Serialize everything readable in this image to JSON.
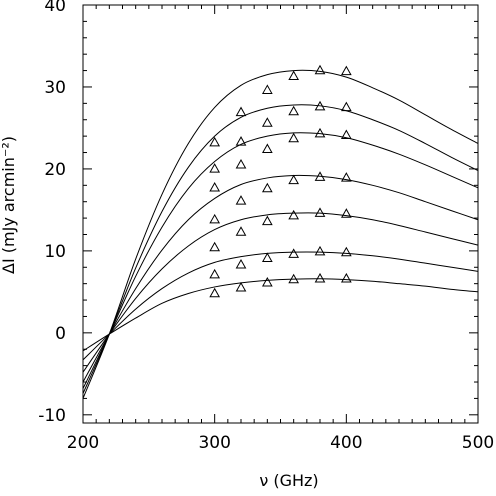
{
  "chart_data": {
    "type": "line",
    "title": "",
    "xlabel": "ν (GHz)",
    "ylabel": "ΔI (mJy arcmin⁻²)",
    "xlim": [
      200,
      500
    ],
    "ylim": [
      -11,
      40
    ],
    "xticks": [
      200,
      300,
      400,
      500
    ],
    "xtick_labels": [
      "200",
      "300",
      "400",
      "500"
    ],
    "yticks": [
      -10,
      0,
      10,
      20,
      30,
      40
    ],
    "ytick_labels": [
      "-10",
      "0",
      "10",
      "20",
      "30",
      "40"
    ],
    "grid": false,
    "line_color": "#000000",
    "marker": "open-triangle",
    "x": [
      200,
      220,
      240,
      260,
      280,
      300,
      320,
      340,
      360,
      380,
      400,
      420,
      440,
      460,
      480,
      500
    ],
    "series": [
      {
        "values": [
          -2.2,
          -0.15,
          1.8,
          3.6,
          4.8,
          5.6,
          6.1,
          6.4,
          6.55,
          6.6,
          6.5,
          6.3,
          6.0,
          5.7,
          5.3,
          5.0
        ]
      },
      {
        "values": [
          -3.3,
          -0.15,
          2.9,
          5.4,
          7.3,
          8.6,
          9.3,
          9.7,
          9.85,
          9.85,
          9.7,
          9.4,
          9.0,
          8.5,
          8.0,
          7.5
        ]
      },
      {
        "values": [
          -4.8,
          -0.15,
          4.2,
          7.8,
          10.6,
          12.6,
          13.8,
          14.4,
          14.6,
          14.6,
          14.3,
          13.8,
          13.1,
          12.3,
          11.5,
          10.7
        ]
      },
      {
        "values": [
          -6.0,
          -0.15,
          5.4,
          10.1,
          13.8,
          16.4,
          18.1,
          18.9,
          19.2,
          19.1,
          18.7,
          18.0,
          17.1,
          16.0,
          14.9,
          13.8
        ]
      },
      {
        "values": [
          -6.8,
          -0.15,
          6.9,
          12.9,
          17.6,
          20.9,
          23.0,
          24.0,
          24.4,
          24.3,
          23.8,
          22.9,
          21.8,
          20.5,
          19.1,
          17.7
        ]
      },
      {
        "values": [
          -7.4,
          -0.15,
          7.9,
          14.8,
          20.2,
          24.0,
          26.3,
          27.4,
          27.8,
          27.7,
          27.1,
          26.0,
          24.7,
          23.1,
          21.4,
          19.8
        ]
      },
      {
        "values": [
          -8.0,
          -0.15,
          9.0,
          16.9,
          23.1,
          27.5,
          30.2,
          31.5,
          32.0,
          31.9,
          31.2,
          29.9,
          28.4,
          26.6,
          24.8,
          23.1
        ]
      }
    ],
    "markers": {
      "x": [
        300,
        320,
        340,
        360,
        380,
        400
      ],
      "series": [
        [
          4.8,
          5.5,
          6.1,
          6.5,
          6.6,
          6.6
        ],
        [
          7.1,
          8.3,
          9.1,
          9.6,
          9.9,
          9.8
        ],
        [
          10.4,
          12.3,
          13.6,
          14.3,
          14.6,
          14.5
        ],
        [
          13.8,
          16.1,
          17.6,
          18.6,
          19.0,
          18.9
        ],
        [
          17.7,
          20.5,
          22.4,
          23.7,
          24.3,
          24.1
        ],
        [
          20.0,
          23.3,
          25.6,
          27.0,
          27.6,
          27.5
        ],
        [
          23.2,
          26.9,
          29.6,
          31.3,
          32.0,
          31.9
        ]
      ]
    }
  }
}
